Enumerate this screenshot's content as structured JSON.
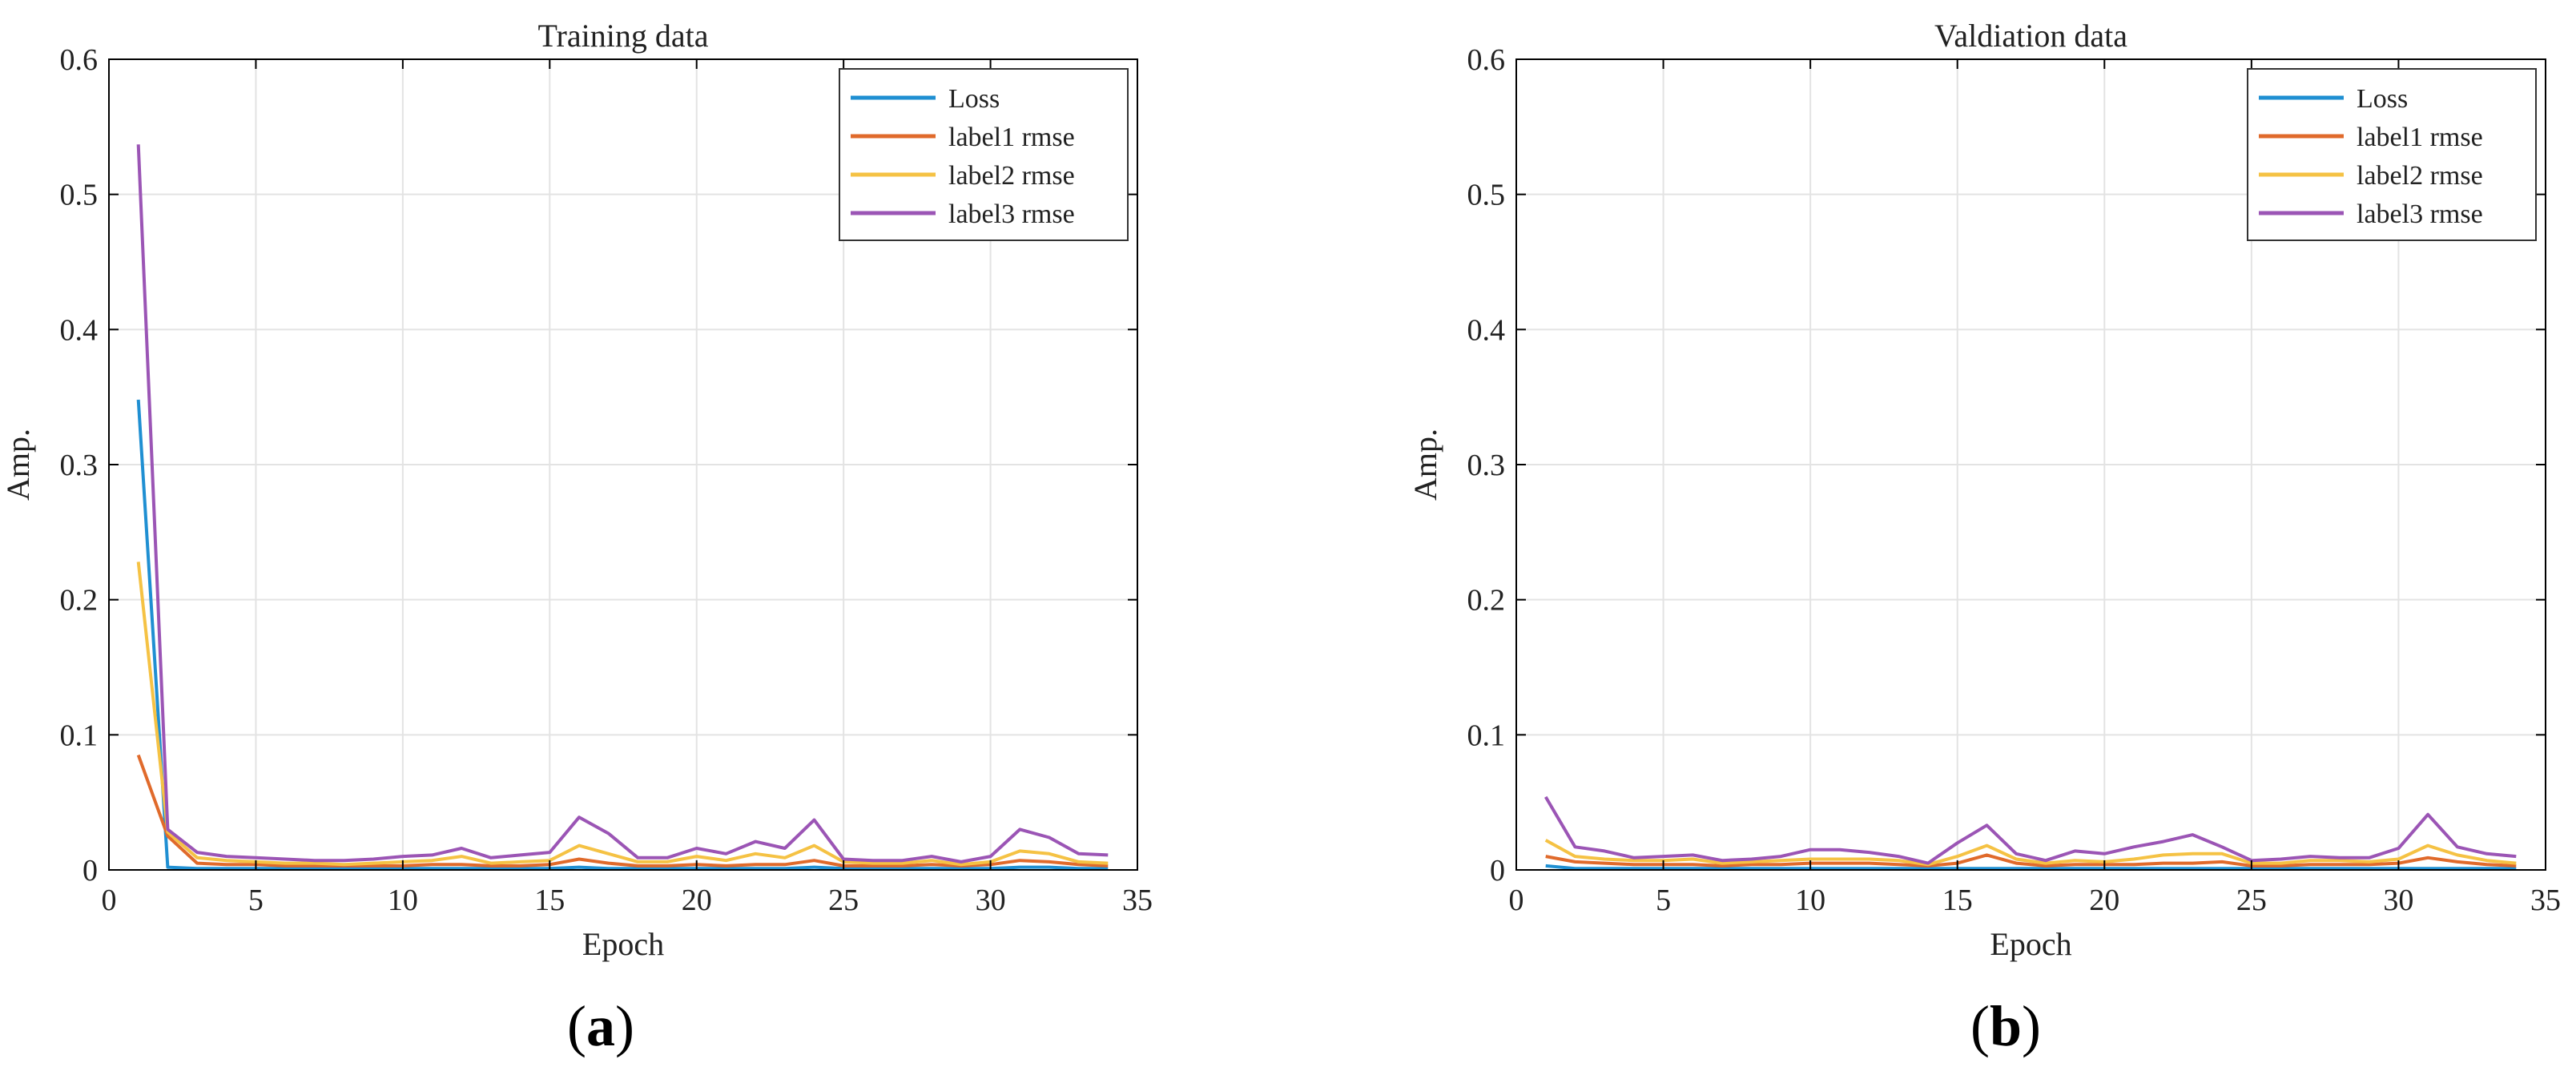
{
  "captions": {
    "a": "(a)",
    "a_letter": "a",
    "b": "(b)",
    "b_letter": "b"
  },
  "colors": {
    "Loss": "#1f8fd2",
    "label1 rmse": "#e06a2b",
    "label2 rmse": "#f5c244",
    "label3 rmse": "#9b55b5",
    "grid": "#e3e3e3",
    "axis": "#000000"
  },
  "chart_data": [
    {
      "type": "line",
      "title": "Training data",
      "xlabel": "Epoch",
      "ylabel": "Amp.",
      "xlim": [
        0,
        35
      ],
      "ylim": [
        0,
        0.6
      ],
      "xticks": [
        0,
        5,
        10,
        15,
        20,
        25,
        30,
        35
      ],
      "yticks": [
        0,
        0.1,
        0.2,
        0.3,
        0.4,
        0.5,
        0.6
      ],
      "grid": true,
      "legend_position": "top-right",
      "x": [
        1,
        2,
        3,
        4,
        5,
        6,
        7,
        8,
        9,
        10,
        11,
        12,
        13,
        14,
        15,
        16,
        17,
        18,
        19,
        20,
        21,
        22,
        23,
        24,
        25,
        26,
        27,
        28,
        29,
        30,
        31,
        32,
        33,
        34
      ],
      "series": [
        {
          "name": "Loss",
          "values": [
            0.348,
            0.002,
            0.001,
            0.001,
            0.001,
            0.001,
            0.001,
            0.001,
            0.001,
            0.001,
            0.001,
            0.001,
            0.001,
            0.001,
            0.001,
            0.002,
            0.001,
            0.001,
            0.001,
            0.001,
            0.001,
            0.001,
            0.001,
            0.002,
            0.001,
            0.001,
            0.001,
            0.001,
            0.001,
            0.001,
            0.002,
            0.002,
            0.001,
            0.001
          ]
        },
        {
          "name": "label1 rmse",
          "values": [
            0.085,
            0.025,
            0.005,
            0.004,
            0.004,
            0.003,
            0.003,
            0.003,
            0.003,
            0.003,
            0.004,
            0.004,
            0.003,
            0.003,
            0.004,
            0.008,
            0.005,
            0.003,
            0.003,
            0.004,
            0.003,
            0.004,
            0.004,
            0.007,
            0.003,
            0.003,
            0.003,
            0.004,
            0.003,
            0.004,
            0.007,
            0.006,
            0.004,
            0.003
          ]
        },
        {
          "name": "label2 rmse",
          "values": [
            0.228,
            0.028,
            0.009,
            0.007,
            0.006,
            0.005,
            0.005,
            0.004,
            0.005,
            0.006,
            0.007,
            0.01,
            0.005,
            0.006,
            0.007,
            0.018,
            0.012,
            0.006,
            0.006,
            0.01,
            0.007,
            0.012,
            0.009,
            0.018,
            0.006,
            0.005,
            0.005,
            0.007,
            0.004,
            0.006,
            0.014,
            0.012,
            0.006,
            0.005
          ]
        },
        {
          "name": "label3 rmse",
          "values": [
            0.537,
            0.03,
            0.013,
            0.01,
            0.009,
            0.008,
            0.007,
            0.007,
            0.008,
            0.01,
            0.011,
            0.016,
            0.009,
            0.011,
            0.013,
            0.039,
            0.027,
            0.009,
            0.009,
            0.016,
            0.012,
            0.021,
            0.016,
            0.037,
            0.008,
            0.007,
            0.007,
            0.01,
            0.006,
            0.01,
            0.03,
            0.024,
            0.012,
            0.011
          ]
        }
      ]
    },
    {
      "type": "line",
      "title": "Valdiation data",
      "xlabel": "Epoch",
      "ylabel": "Amp.",
      "xlim": [
        0,
        35
      ],
      "ylim": [
        0,
        0.6
      ],
      "xticks": [
        0,
        5,
        10,
        15,
        20,
        25,
        30,
        35
      ],
      "yticks": [
        0,
        0.1,
        0.2,
        0.3,
        0.4,
        0.5,
        0.6
      ],
      "grid": true,
      "legend_position": "top-right",
      "x": [
        1,
        2,
        3,
        4,
        5,
        6,
        7,
        8,
        9,
        10,
        11,
        12,
        13,
        14,
        15,
        16,
        17,
        18,
        19,
        20,
        21,
        22,
        23,
        24,
        25,
        26,
        27,
        28,
        29,
        30,
        31,
        32,
        33,
        34
      ],
      "series": [
        {
          "name": "Loss",
          "values": [
            0.003,
            0.001,
            0.001,
            0.001,
            0.001,
            0.001,
            0.001,
            0.001,
            0.001,
            0.001,
            0.001,
            0.001,
            0.001,
            0.001,
            0.001,
            0.001,
            0.001,
            0.001,
            0.001,
            0.001,
            0.001,
            0.001,
            0.001,
            0.001,
            0.001,
            0.001,
            0.001,
            0.001,
            0.001,
            0.001,
            0.001,
            0.001,
            0.001,
            0.001
          ]
        },
        {
          "name": "label1 rmse",
          "values": [
            0.01,
            0.006,
            0.005,
            0.004,
            0.004,
            0.004,
            0.003,
            0.004,
            0.004,
            0.005,
            0.005,
            0.005,
            0.004,
            0.003,
            0.005,
            0.011,
            0.005,
            0.003,
            0.004,
            0.004,
            0.004,
            0.005,
            0.005,
            0.006,
            0.003,
            0.003,
            0.004,
            0.004,
            0.004,
            0.005,
            0.009,
            0.006,
            0.004,
            0.003
          ]
        },
        {
          "name": "label2 rmse",
          "values": [
            0.022,
            0.01,
            0.008,
            0.007,
            0.007,
            0.008,
            0.005,
            0.006,
            0.007,
            0.008,
            0.008,
            0.008,
            0.007,
            0.004,
            0.01,
            0.018,
            0.008,
            0.005,
            0.007,
            0.006,
            0.008,
            0.011,
            0.012,
            0.012,
            0.005,
            0.005,
            0.007,
            0.007,
            0.006,
            0.008,
            0.018,
            0.011,
            0.007,
            0.005
          ]
        },
        {
          "name": "label3 rmse",
          "values": [
            0.054,
            0.017,
            0.014,
            0.009,
            0.01,
            0.011,
            0.007,
            0.008,
            0.01,
            0.015,
            0.015,
            0.013,
            0.01,
            0.005,
            0.02,
            0.033,
            0.012,
            0.007,
            0.014,
            0.012,
            0.017,
            0.021,
            0.026,
            0.017,
            0.007,
            0.008,
            0.01,
            0.009,
            0.009,
            0.016,
            0.041,
            0.017,
            0.012,
            0.01
          ]
        }
      ]
    }
  ]
}
